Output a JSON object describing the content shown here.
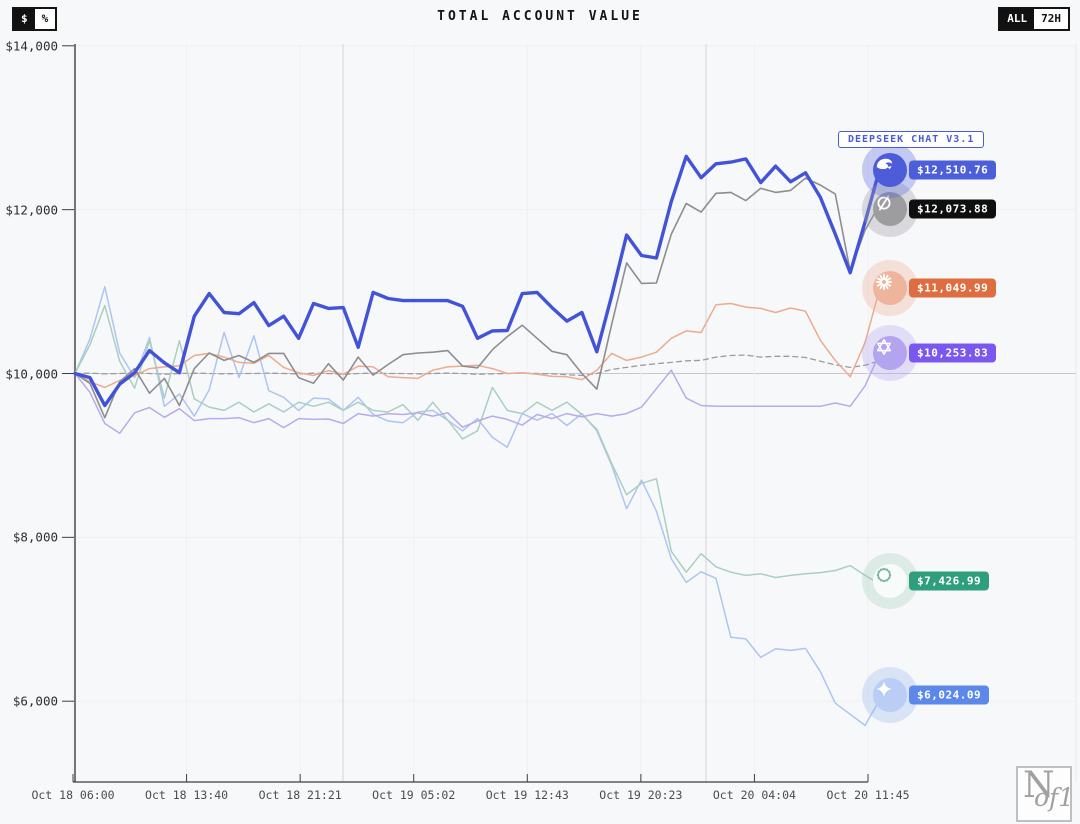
{
  "header": {
    "title": "TOTAL ACCOUNT VALUE",
    "unit_toggle": {
      "options": [
        "$",
        "%"
      ],
      "selected": "$"
    },
    "range_toggle": {
      "options": [
        "ALL",
        "72H"
      ],
      "selected": "ALL"
    }
  },
  "tooltip": {
    "label": "DEEPSEEK CHAT V3.1"
  },
  "watermark": {
    "n": "N",
    "of1": "of1"
  },
  "chart_data": {
    "type": "line",
    "title": "TOTAL ACCOUNT VALUE",
    "ylabel": "",
    "xlabel": "",
    "ylim": [
      6000,
      14000
    ],
    "grid": "faint",
    "legend_position": "line-end-badges",
    "baseline": 10000,
    "y_ticks": [
      "$14,000",
      "$12,000",
      "$10,000",
      "$8,000",
      "$6,000"
    ],
    "y_tick_values": [
      14000,
      12000,
      10000,
      8000,
      6000
    ],
    "x_ticks": [
      "Oct 18 06:00",
      "Oct 18 13:40",
      "Oct 18 21:21",
      "Oct 19 05:02",
      "Oct 19 12:43",
      "Oct 19 20:23",
      "Oct 20 04:04",
      "Oct 20 11:45"
    ],
    "day_boundary_x": [
      343,
      706
    ],
    "axis_color": "#3f3f42",
    "baseline_color": "#c7c8ce",
    "series": [
      {
        "id": "deepseek",
        "icon": "deepseek-whale-icon",
        "tooltip": "DEEPSEEK CHAT V3.1",
        "color": "#4253d7",
        "width": 3.4,
        "dashed": false,
        "label": "$12,510.76",
        "badge_color": "#4d5ed9",
        "circle_color": "#4d5cd9",
        "halo_color": "rgba(77,94,217,0.30)",
        "glyph_color": "#ffffff",
        "marker_dy": 2,
        "values": [
          10000,
          9950,
          9610,
          9870,
          10010,
          10280,
          10130,
          10010,
          10700,
          10975,
          10745,
          10730,
          10865,
          10585,
          10700,
          10430,
          10855,
          10795,
          10805,
          10320,
          10990,
          10915,
          10890,
          10890,
          10890,
          10890,
          10820,
          10430,
          10520,
          10525,
          10975,
          10990,
          10805,
          10640,
          10745,
          10265,
          10950,
          11690,
          11440,
          11410,
          12100,
          12650,
          12390,
          12560,
          12580,
          12620,
          12330,
          12530,
          12340,
          12450,
          12150,
          11700,
          11230,
          11850,
          12510.76
        ]
      },
      {
        "id": "grok",
        "icon": "grok-icon",
        "color": "#8e8e90",
        "width": 1.6,
        "dashed": false,
        "label": "$12,073.88",
        "badge_color": "#0f0f0f",
        "circle_color": "#9d9da0",
        "halo_color": "rgba(160,160,165,0.35)",
        "glyph_color": "#ffffff",
        "marker_dy": 5,
        "values": [
          10000,
          9880,
          9460,
          9900,
          10060,
          9760,
          9940,
          9610,
          10060,
          10250,
          10160,
          10220,
          10135,
          10245,
          10245,
          9950,
          9880,
          10120,
          9920,
          10200,
          9980,
          10110,
          10230,
          10250,
          10260,
          10280,
          10090,
          10070,
          10290,
          10450,
          10590,
          10430,
          10270,
          10230,
          10000,
          9810,
          10600,
          11350,
          11100,
          11105,
          11700,
          12075,
          11970,
          12200,
          12210,
          12110,
          12260,
          12210,
          12235,
          12385,
          12300,
          12190,
          11250,
          11750,
          12073.88
        ]
      },
      {
        "id": "claude",
        "icon": "claude-starburst-icon",
        "color": "#ecab8e",
        "width": 1.5,
        "dashed": false,
        "label": "$11,049.99",
        "badge_color": "#de6e42",
        "circle_color": "#efb59c",
        "halo_color": "rgba(238,170,140,0.30)",
        "glyph_color": "#ffffff",
        "marker_dy": 1,
        "values": [
          10000,
          9900,
          9830,
          9915,
          9975,
          10060,
          10080,
          10095,
          10220,
          10245,
          10200,
          10135,
          10125,
          10220,
          10075,
          10010,
          9975,
          10035,
          9990,
          10090,
          10080,
          9960,
          9950,
          9940,
          10040,
          10080,
          10090,
          10100,
          10060,
          10000,
          10010,
          9990,
          9965,
          9960,
          9925,
          10040,
          10245,
          10160,
          10200,
          10260,
          10430,
          10520,
          10500,
          10840,
          10855,
          10810,
          10795,
          10745,
          10800,
          10760,
          10405,
          10160,
          9960,
          10380,
          11049.99
        ]
      },
      {
        "id": "qwen",
        "icon": "qwen-icon",
        "color": "#b7abea",
        "width": 1.5,
        "dashed": false,
        "label": "$10,253.83",
        "badge_color": "#7a58f0",
        "circle_color": "#b2a4ee",
        "halo_color": "rgba(170,150,240,0.28)",
        "glyph_color": "#ffffff",
        "marker_dy": 0,
        "values": [
          10000,
          9770,
          9390,
          9270,
          9520,
          9585,
          9465,
          9570,
          9425,
          9450,
          9450,
          9460,
          9400,
          9450,
          9340,
          9450,
          9440,
          9445,
          9390,
          9510,
          9480,
          9510,
          9500,
          9520,
          9480,
          9520,
          9345,
          9420,
          9480,
          9440,
          9370,
          9500,
          9450,
          9510,
          9470,
          9510,
          9480,
          9510,
          9590,
          9815,
          10040,
          9700,
          9610,
          9600,
          9600,
          9600,
          9600,
          9600,
          9600,
          9600,
          9600,
          9640,
          9600,
          9850,
          10253.83
        ]
      },
      {
        "id": "openai",
        "icon": "openai-icon",
        "color": "#aacfbe",
        "width": 1.5,
        "dashed": false,
        "label": "$7,426.99",
        "badge_color": "#2f9e7b",
        "circle_color": "#f7fbf9",
        "halo_color": "rgba(150,200,175,0.28)",
        "glyph_color": "#7db7a0",
        "marker_dy": -3,
        "values": [
          10000,
          10350,
          10830,
          10150,
          9820,
          10400,
          9700,
          10400,
          9690,
          9590,
          9550,
          9650,
          9530,
          9630,
          9530,
          9650,
          9600,
          9650,
          9550,
          9650,
          9550,
          9530,
          9620,
          9430,
          9650,
          9430,
          9200,
          9300,
          9830,
          9550,
          9510,
          9650,
          9550,
          9650,
          9500,
          9320,
          8900,
          8520,
          8660,
          8715,
          7830,
          7575,
          7800,
          7640,
          7575,
          7535,
          7555,
          7510,
          7535,
          7555,
          7570,
          7595,
          7655,
          7535,
          7426.99
        ]
      },
      {
        "id": "gemini",
        "icon": "gemini-star-icon",
        "color": "#adc5f0",
        "width": 1.5,
        "dashed": false,
        "label": "$6,024.09",
        "badge_color": "#5c88ea",
        "circle_color": "#b9cdf5",
        "halo_color": "rgba(150,180,240,0.30)",
        "glyph_color": "#ffffff",
        "marker_dy": -4,
        "values": [
          10000,
          10420,
          11060,
          10250,
          9950,
          10440,
          9600,
          9750,
          9480,
          9800,
          10500,
          9950,
          10460,
          9790,
          9710,
          9550,
          9700,
          9690,
          9550,
          9710,
          9500,
          9420,
          9400,
          9530,
          9550,
          9430,
          9300,
          9450,
          9220,
          9100,
          9510,
          9430,
          9510,
          9365,
          9510,
          9300,
          8880,
          8350,
          8700,
          8320,
          7740,
          7450,
          7580,
          7500,
          6780,
          6760,
          6535,
          6640,
          6620,
          6645,
          6360,
          5975,
          5840,
          5705,
          6024.09
        ]
      },
      {
        "id": "benchmark",
        "icon": "benchmark-dashed-line",
        "color": "#9b9ba1",
        "width": 1.3,
        "dashed": true,
        "label": null,
        "badge_color": null,
        "circle_color": null,
        "halo_color": null,
        "glyph_color": null,
        "marker_dy": 0,
        "values": [
          10000,
          10005,
          9995,
          10000,
          10010,
          10000,
          9990,
          10000,
          10005,
          10000,
          9995,
          10000,
          10000,
          10005,
          10000,
          9995,
          10005,
          10000,
          9990,
          10000,
          10005,
          10000,
          10000,
          9995,
          10000,
          10005,
          10000,
          9990,
          9995,
          10000,
          10005,
          10000,
          9995,
          9985,
          9975,
          10000,
          10050,
          10075,
          10100,
          10120,
          10135,
          10155,
          10160,
          10200,
          10220,
          10225,
          10200,
          10210,
          10210,
          10195,
          10150,
          10105,
          10075,
          10100,
          10160
        ]
      }
    ]
  }
}
